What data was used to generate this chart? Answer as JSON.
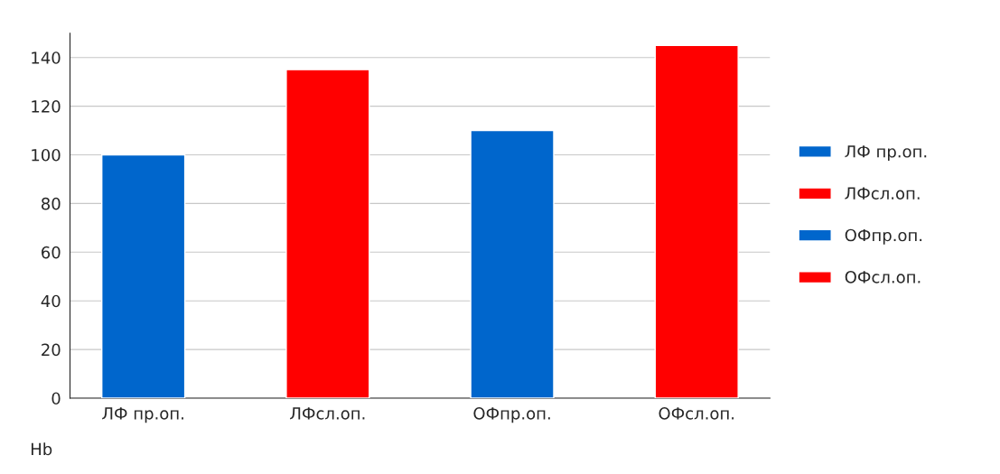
{
  "chart_data": {
    "type": "bar",
    "categories": [
      "ЛФ пр.оп.",
      "ЛФсл.оп.",
      "ОФпр.оп.",
      "ОФсл.оп."
    ],
    "series": [
      {
        "name": "ЛФ пр.оп.",
        "color": "#0066cc",
        "values": [
          100,
          null,
          null,
          null
        ]
      },
      {
        "name": "ЛФсл.оп.",
        "color": "#ff0000",
        "values": [
          null,
          135,
          null,
          null
        ]
      },
      {
        "name": "ОФпр.оп.",
        "color": "#0066cc",
        "values": [
          null,
          null,
          110,
          null
        ]
      },
      {
        "name": "ОФсл.оп.",
        "color": "#ff0000",
        "values": [
          null,
          null,
          null,
          145
        ]
      }
    ],
    "ylim": [
      0,
      150
    ],
    "yticks": [
      0,
      20,
      40,
      60,
      80,
      100,
      120,
      140
    ],
    "grid": "y",
    "legend": "right",
    "annotations": [
      "Hb"
    ]
  }
}
